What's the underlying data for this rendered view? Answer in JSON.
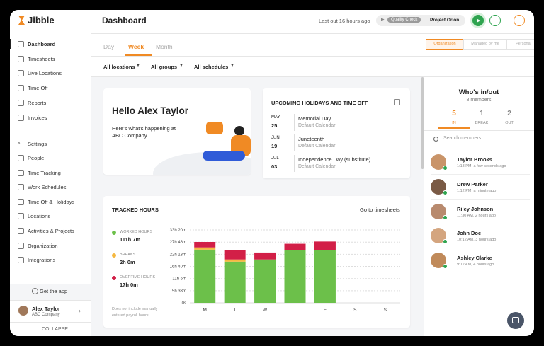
{
  "sidebar": {
    "brand": "Jibble",
    "menu": [
      "Dashboard",
      "Timesheets",
      "Live Locations",
      "Time Off",
      "Reports",
      "Invoices"
    ],
    "settings_title": "Settings",
    "settings": [
      "People",
      "Time Tracking",
      "Work Schedules",
      "Time Off & Holidays",
      "Locations",
      "Activities & Projects",
      "Organization",
      "Integrations"
    ],
    "get_app": "Get the app",
    "user": {
      "name": "Alex Taylor",
      "company": "ABC Company"
    },
    "collapse": "COLLAPSE"
  },
  "header": {
    "title": "Dashboard",
    "last_out": "Last out 16 hours ago",
    "activity": "Quality Check",
    "project": "Project Orion"
  },
  "tabs": [
    "Day",
    "Week",
    "Month"
  ],
  "active_tab": 1,
  "view_modes": [
    "Organization",
    "Managed by me",
    "Personal"
  ],
  "active_view": 0,
  "filters": [
    "All locations",
    "All groups",
    "All schedules"
  ],
  "greeting": {
    "title": "Hello Alex Taylor",
    "line1": "Here's what's happening at",
    "line2": "ABC Company"
  },
  "holidays": {
    "title": "UPCOMING HOLIDAYS AND TIME OFF",
    "items": [
      {
        "month": "MAY",
        "day": "25",
        "name": "Memorial Day",
        "calendar": "Default Calendar"
      },
      {
        "month": "JUN",
        "day": "19",
        "name": "Juneteenth",
        "calendar": "Default Calendar"
      },
      {
        "month": "JUL",
        "day": "03",
        "name": "Independence Day (substitute)",
        "calendar": "Default Calendar"
      }
    ]
  },
  "tracked": {
    "title": "TRACKED HOURS",
    "link": "Go to timesheets",
    "note_line1": "Does not include manually",
    "note_line2": "entered payroll hours"
  },
  "chart_data": {
    "type": "stacked_bar",
    "categories": [
      "M",
      "T",
      "W",
      "T",
      "F",
      "S",
      "S"
    ],
    "series": [
      {
        "name": "WORKED HOURS",
        "total": "111h 7m",
        "color": "#6cc04a",
        "values": [
          1460,
          1130,
          1190,
          1450,
          1437,
          0,
          0
        ]
      },
      {
        "name": "BREAKS",
        "total": "2h 0m",
        "color": "#f5b840",
        "values": [
          60,
          60,
          0,
          0,
          0,
          0,
          0
        ]
      },
      {
        "name": "OVERTIME HOURS",
        "total": "17h 0m",
        "color": "#d21f47",
        "values": [
          150,
          265,
          190,
          170,
          245,
          0,
          0
        ]
      }
    ],
    "ylim": [
      0,
      2000
    ],
    "yticks": [
      {
        "value": 0,
        "label": "0s"
      },
      {
        "value": 333,
        "label": "5h 33m"
      },
      {
        "value": 666,
        "label": "11h 6m"
      },
      {
        "value": 1000,
        "label": "16h 40m"
      },
      {
        "value": 1333,
        "label": "22h 13m"
      },
      {
        "value": 1666,
        "label": "27h 46m"
      },
      {
        "value": 2000,
        "label": "33h 20m"
      }
    ],
    "grid": true
  },
  "whos_in": {
    "title": "Who's in/out",
    "members": "8 members",
    "stats": [
      {
        "value": "5",
        "label": "IN"
      },
      {
        "value": "1",
        "label": "BREAK"
      },
      {
        "value": "2",
        "label": "OUT"
      }
    ],
    "active_stat": 0,
    "search": "Search members...",
    "people": [
      {
        "name": "Taylor Brooks",
        "time": "1:13 PM, a few seconds ago"
      },
      {
        "name": "Drew Parker",
        "time": "1:12 PM, a minute ago"
      },
      {
        "name": "Riley Johnson",
        "time": "11:30 AM, 2 hours ago"
      },
      {
        "name": "John Doe",
        "time": "10:12 AM, 3 hours ago"
      },
      {
        "name": "Ashley Clarke",
        "time": "9:12 AM, 4 hours ago"
      }
    ]
  }
}
